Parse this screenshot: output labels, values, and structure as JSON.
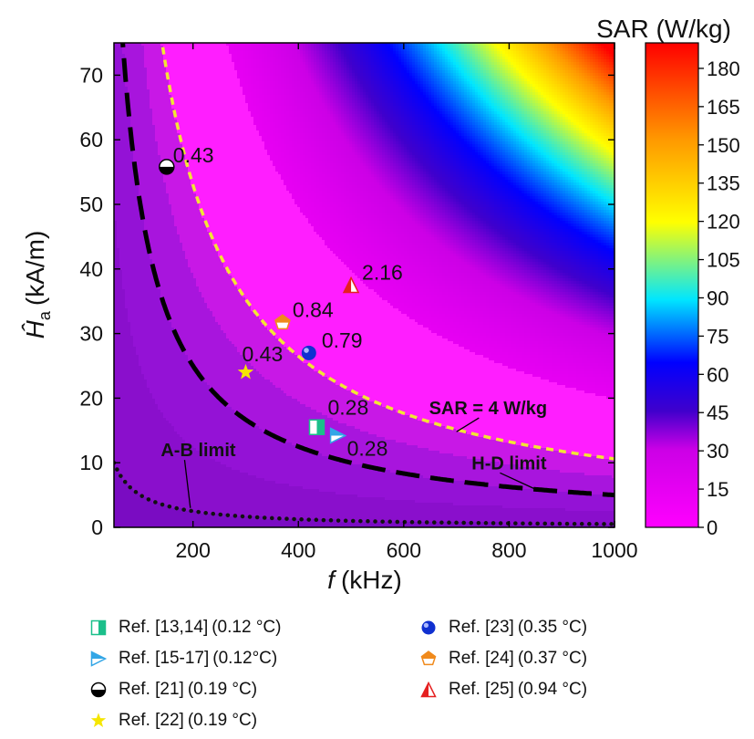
{
  "chart_data": {
    "type": "heatmap",
    "title": "",
    "xlabel_italic": "f",
    "xlabel_unit": "(kHz)",
    "ylabel_italic": "Ĥ",
    "ylabel_sub": "a",
    "ylabel_unit": "(kA/m)",
    "xlim": [
      50,
      1000
    ],
    "ylim": [
      0,
      75
    ],
    "x_ticks": [
      200,
      400,
      600,
      800,
      1000
    ],
    "y_ticks": [
      0,
      10,
      20,
      30,
      40,
      50,
      60,
      70
    ],
    "colorbar": {
      "title": "SAR (W/kg)",
      "range": [
        0,
        190
      ],
      "ticks": [
        0,
        15,
        30,
        45,
        60,
        75,
        90,
        105,
        120,
        135,
        150,
        165,
        180
      ]
    },
    "curves": [
      {
        "name": "A-B limit",
        "style": "dotted",
        "color": "#111111",
        "product_Hf": 500,
        "label_pos": [
          210,
          11
        ],
        "arrow_to": [
          195,
          3
        ]
      },
      {
        "name": "H-D limit",
        "style": "dashed",
        "color": "#000000",
        "product_Hf": 5000,
        "label_pos": [
          800,
          9
        ],
        "arrow_to": [
          850,
          5.9
        ]
      },
      {
        "name": "SAR = 4 W/kg",
        "style": "dashed",
        "color": "#f2e633",
        "product_Hf": 10600,
        "label_pos": [
          760,
          17.5
        ],
        "arrow_to": [
          700,
          14.8
        ]
      }
    ],
    "points": [
      {
        "ref": "Ref. [13,14]",
        "temp": "(0.12 °C)",
        "x": 435,
        "y": 15.5,
        "label": "0.28",
        "marker": "half-square",
        "color": "#1bbf8a"
      },
      {
        "ref": "Ref. [15-17]",
        "temp": "(0.12°C)",
        "x": 475,
        "y": 14.2,
        "label": "0.28",
        "marker": "half-triangle-right",
        "color": "#33a6e6"
      },
      {
        "ref": "Ref. [21]",
        "temp": "(0.19 °C)",
        "x": 150,
        "y": 55.8,
        "label": "0.43",
        "marker": "half-circle",
        "color": "#000000"
      },
      {
        "ref": "Ref. [22]",
        "temp": "(0.19 °C)",
        "x": 300,
        "y": 24,
        "label": "0.43",
        "marker": "star",
        "color": "#f5e600"
      },
      {
        "ref": "Ref. [23]",
        "temp": "(0.35 °C)",
        "x": 420,
        "y": 27,
        "label": "0.79",
        "marker": "sphere",
        "color": "#1030d0"
      },
      {
        "ref": "Ref. [24]",
        "temp": "(0.37 °C)",
        "x": 370,
        "y": 31.7,
        "label": "0.84",
        "marker": "half-pentagon",
        "color": "#f08a1c"
      },
      {
        "ref": "Ref. [25]",
        "temp": "(0.94 °C)",
        "x": 500,
        "y": 37.5,
        "label": "2.16",
        "marker": "half-triangle-up",
        "color": "#e52020"
      }
    ]
  }
}
